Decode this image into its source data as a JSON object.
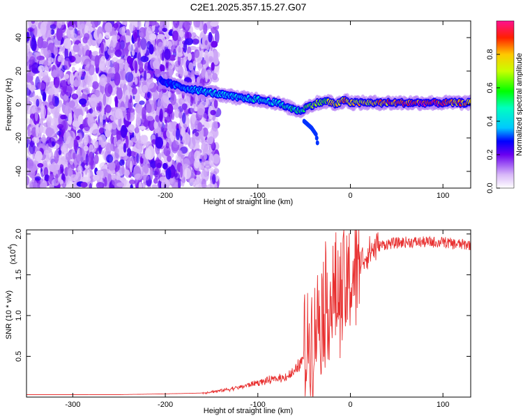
{
  "title": "C2E1.2025.357.15.27.G07",
  "chart_data": [
    {
      "type": "heatmap",
      "name": "spectrogram",
      "xlabel": "Height of straight line (km)",
      "ylabel": "Frequency (Hz)",
      "xlim": [
        -350,
        130
      ],
      "ylim": [
        -50,
        50
      ],
      "xticks": [
        -300,
        -200,
        -100,
        0,
        100
      ],
      "yticks": [
        -40,
        -20,
        0,
        20,
        40
      ],
      "colorbar": {
        "label": "Normalized spectral amplitude",
        "range": [
          0,
          1
        ],
        "ticks": [
          0.0,
          0.2,
          0.4,
          0.6,
          0.8
        ]
      },
      "noise_region_x": [
        -350,
        -150
      ],
      "signal_track": {
        "x": [
          -205,
          -180,
          -150,
          -120,
          -100,
          -80,
          -65,
          -55,
          -45,
          -35,
          -25,
          -15,
          -5,
          0,
          20,
          40,
          60,
          80,
          100,
          130
        ],
        "freq_hz": [
          14,
          10,
          7,
          4,
          3,
          1,
          -2,
          -4,
          -1,
          1,
          2,
          0,
          3,
          1,
          1,
          1,
          1,
          1,
          1,
          1
        ],
        "amplitude": [
          0.25,
          0.35,
          0.4,
          0.4,
          0.45,
          0.45,
          0.5,
          0.55,
          0.6,
          0.65,
          0.7,
          0.75,
          0.8,
          0.75,
          0.75,
          0.85,
          0.9,
          0.95,
          0.85,
          0.8
        ]
      },
      "secondary_branch": {
        "x": [
          -50,
          -42,
          -37,
          -35
        ],
        "freq_hz": [
          -10,
          -14,
          -18,
          -25
        ]
      }
    },
    {
      "type": "line",
      "name": "snr",
      "xlabel": "Height of straight line (km)",
      "ylabel": "SNR (10 * v/v)",
      "scale_label": "(x10",
      "scale_exponent": "4",
      "xlim": [
        -350,
        130
      ],
      "ylim": [
        0,
        2.05
      ],
      "xticks": [
        -300,
        -200,
        -100,
        0,
        100
      ],
      "yticks": [
        0.5,
        1.0,
        1.5,
        2.0
      ],
      "color": "#e83030",
      "x": [
        -350,
        -300,
        -250,
        -200,
        -160,
        -140,
        -120,
        -110,
        -100,
        -90,
        -80,
        -70,
        -60,
        -50,
        -45,
        -40,
        -35,
        -30,
        -25,
        -20,
        -15,
        -10,
        -5,
        0,
        5,
        10,
        20,
        30,
        40,
        60,
        80,
        100,
        110,
        120,
        130
      ],
      "y": [
        0.03,
        0.03,
        0.03,
        0.04,
        0.05,
        0.08,
        0.12,
        0.15,
        0.18,
        0.2,
        0.22,
        0.25,
        0.3,
        0.5,
        0.7,
        0.8,
        1.0,
        1.1,
        1.2,
        1.15,
        1.2,
        1.25,
        1.3,
        1.4,
        1.55,
        1.65,
        1.78,
        1.85,
        1.88,
        1.9,
        1.9,
        1.9,
        1.88,
        1.87,
        1.87
      ]
    }
  ]
}
